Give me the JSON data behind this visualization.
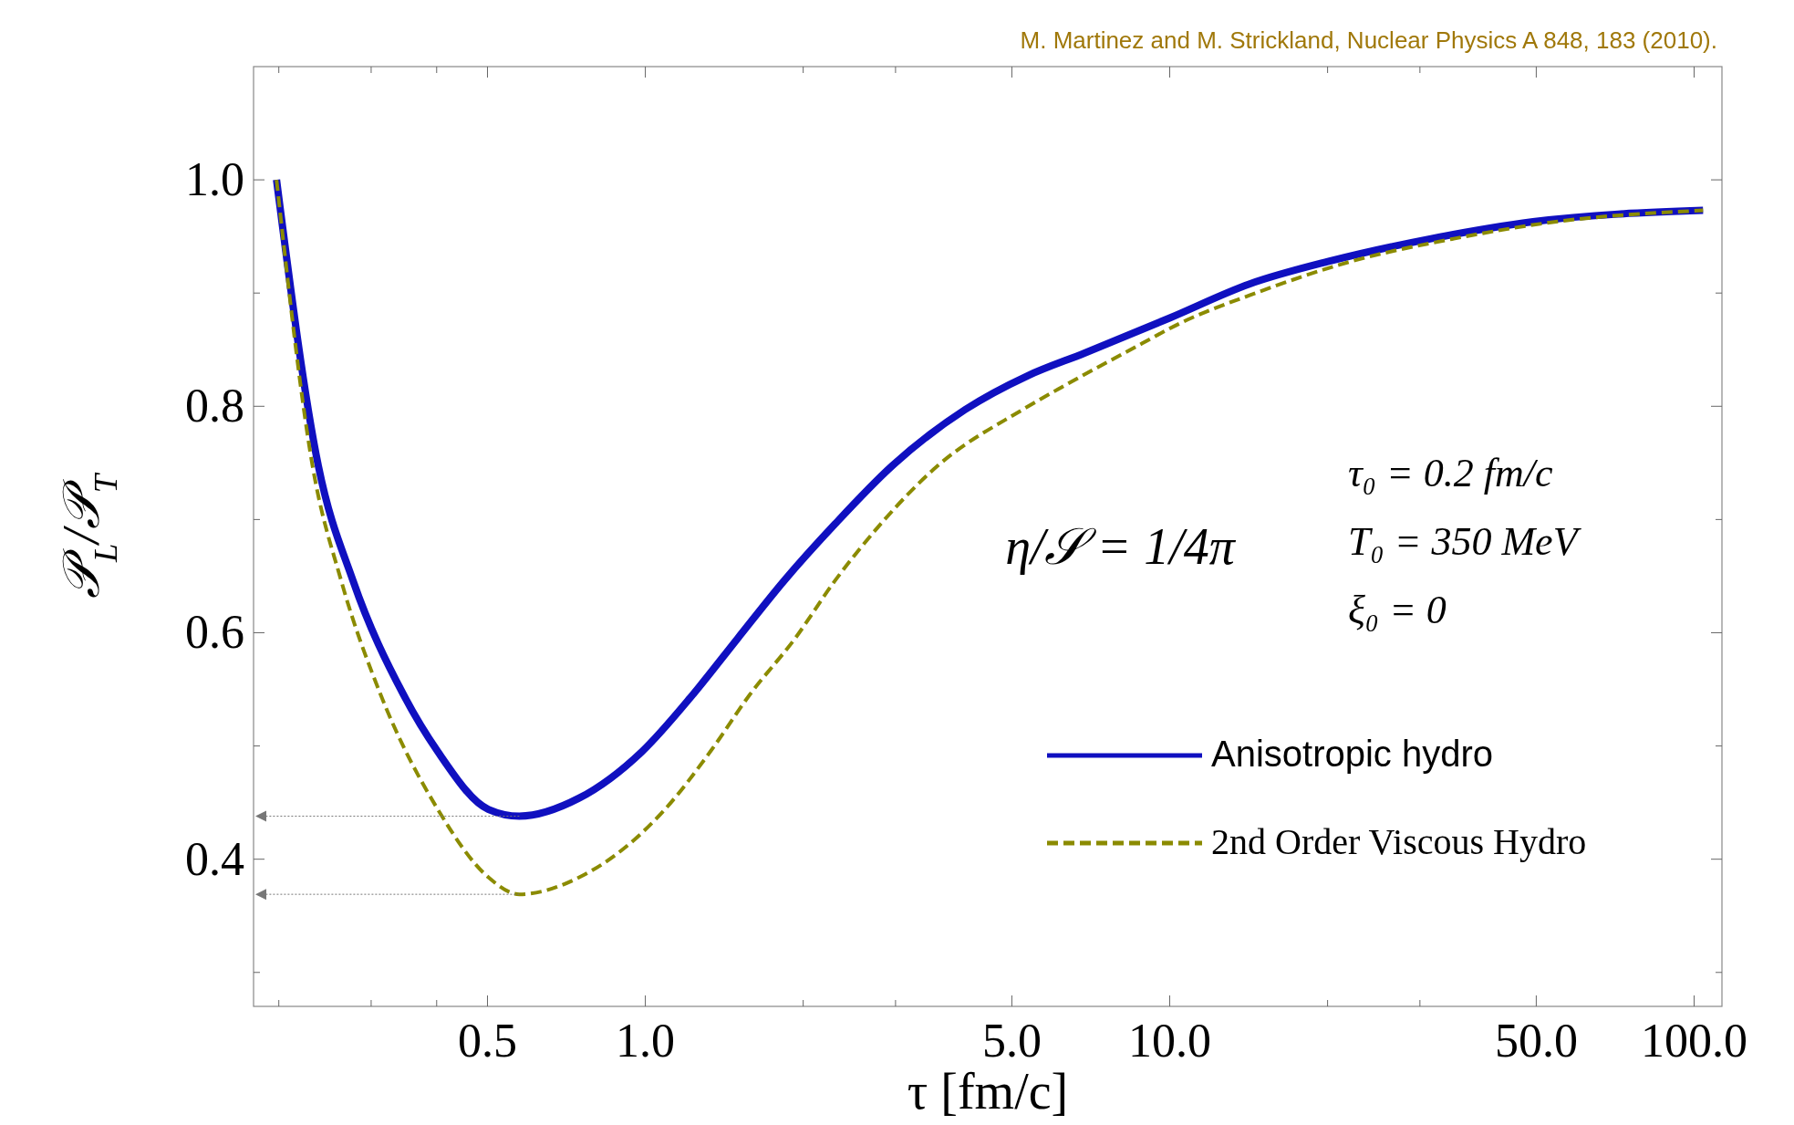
{
  "chart_data": {
    "type": "line",
    "xlabel": "τ [fm/c]",
    "ylabel": "𝒫$_{L}$/𝒫$_{T}$",
    "log": "x",
    "xlim": [
      0.179,
      113
    ],
    "ylim": [
      0.27,
      1.1
    ],
    "xticks": [
      {
        "value": 0.2,
        "label": null
      },
      {
        "value": 0.3,
        "label": null
      },
      {
        "value": 0.4,
        "label": null
      },
      {
        "value": 0.5,
        "label": "0.5"
      },
      {
        "value": 1,
        "label": "1.0"
      },
      {
        "value": 2,
        "label": null
      },
      {
        "value": 3,
        "label": null
      },
      {
        "value": 5,
        "label": "5.0"
      },
      {
        "value": 10,
        "label": "10.0"
      },
      {
        "value": 20,
        "label": null
      },
      {
        "value": 30,
        "label": null
      },
      {
        "value": 50,
        "label": "50.0"
      },
      {
        "value": 100,
        "label": "100.0"
      }
    ],
    "yticks": [
      {
        "value": 0.3,
        "label": null
      },
      {
        "value": 0.4,
        "label": "0.4"
      },
      {
        "value": 0.5,
        "label": null
      },
      {
        "value": 0.6,
        "label": "0.6"
      },
      {
        "value": 0.7,
        "label": null
      },
      {
        "value": 0.8,
        "label": "0.8"
      },
      {
        "value": 0.9,
        "label": null
      },
      {
        "value": 1.0,
        "label": "1.0"
      }
    ],
    "grid": false,
    "legend": "bottom right",
    "series": [
      {
        "name": "Anisotropic hydro",
        "color": "#1010c0",
        "line_style": "solid",
        "x": [
          0.198,
          0.238,
          0.277,
          0.346,
          0.402,
          0.502,
          0.575,
          0.748,
          0.985,
          1.23,
          1.5,
          1.84,
          2.3,
          2.95,
          4.07,
          5.36,
          6.88,
          10,
          14.2,
          20.1,
          31.5,
          49.3,
          104
        ],
        "values": [
          1.0,
          0.747,
          0.646,
          0.545,
          0.495,
          0.444,
          0.438,
          0.454,
          0.495,
          0.545,
          0.595,
          0.646,
          0.696,
          0.747,
          0.797,
          0.827,
          0.847,
          0.878,
          0.908,
          0.928,
          0.948,
          0.963,
          0.973
        ]
      },
      {
        "name": "2nd Order Viscous Hydro",
        "color": "#8b8b00",
        "line_style": "dashed",
        "x": [
          0.198,
          0.232,
          0.263,
          0.313,
          0.402,
          0.502,
          0.575,
          0.748,
          1.09,
          1.33,
          1.58,
          1.93,
          2.3,
          2.81,
          3.6,
          5.24,
          6.23,
          8.19,
          11.0,
          14.2,
          22.2,
          34.8,
          54.5,
          104
        ],
        "values": [
          1.0,
          0.747,
          0.646,
          0.545,
          0.444,
          0.384,
          0.369,
          0.384,
          0.444,
          0.495,
          0.545,
          0.595,
          0.646,
          0.696,
          0.747,
          0.797,
          0.817,
          0.847,
          0.878,
          0.898,
          0.928,
          0.948,
          0.963,
          0.973
        ]
      }
    ],
    "annotations": [
      "M. Martinez and M. Strickland, Nuclear Physics A 848, 183 (2010).",
      "η/𝒮 = 1/4π",
      "τ₀ = 0.2 fm/c",
      "T₀ = 350 MeV",
      "ξ₀ = 0"
    ]
  }
}
